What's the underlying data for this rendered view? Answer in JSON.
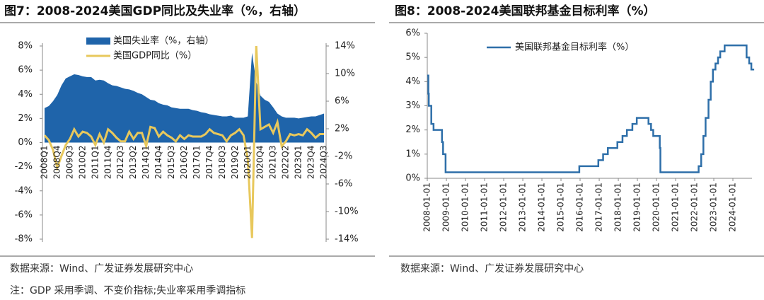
{
  "chart_data": [
    {
      "type": "combo",
      "title": "图7：2008-2024美国GDP同比及失业率（%，右轴）",
      "categories": [
        "2008Q1",
        null,
        null,
        "2008Q4",
        null,
        null,
        "2009Q3",
        null,
        null,
        "2010Q2",
        null,
        null,
        "2011Q1",
        null,
        null,
        "2011Q4",
        null,
        null,
        "2012Q3",
        null,
        null,
        "2013Q2",
        null,
        null,
        "2014Q1",
        null,
        null,
        "2014Q4",
        null,
        null,
        "2015Q3",
        null,
        null,
        "2016Q2",
        null,
        null,
        "2017Q1",
        null,
        null,
        "2017Q4",
        null,
        null,
        "2018Q3",
        null,
        null,
        "2019Q2",
        null,
        null,
        "2020Q1",
        null,
        null,
        "2020Q4",
        null,
        null,
        "2021Q3",
        null,
        null,
        "2022Q2",
        null,
        null,
        "2023Q1",
        null,
        null,
        "2023Q4",
        null,
        null,
        "2024Q3"
      ],
      "series": [
        {
          "name": "美国失业率（%，右轴）",
          "type": "area",
          "axis": "y2",
          "color": "#1f64aa",
          "values": [
            5.0,
            5.3,
            6.0,
            6.9,
            8.3,
            9.3,
            9.6,
            9.9,
            9.8,
            9.6,
            9.5,
            9.5,
            9.0,
            9.1,
            9.0,
            8.6,
            8.3,
            8.2,
            8.0,
            7.8,
            7.7,
            7.5,
            7.2,
            7.0,
            6.6,
            6.2,
            6.1,
            5.7,
            5.5,
            5.4,
            5.1,
            5.0,
            4.9,
            4.9,
            4.9,
            4.7,
            4.6,
            4.4,
            4.3,
            4.1,
            4.0,
            3.9,
            3.8,
            3.8,
            3.9,
            3.6,
            3.6,
            3.6,
            3.8,
            13.0,
            8.8,
            6.8,
            6.2,
            5.9,
            5.1,
            4.2,
            3.8,
            3.6,
            3.6,
            3.6,
            3.5,
            3.6,
            3.7,
            3.8,
            3.8,
            4.0,
            4.2
          ]
        },
        {
          "name": "美国GDP同比（%）",
          "type": "line",
          "color": "#e8c85c",
          "values": [
            0.6,
            0.2,
            -0.6,
            -2.1,
            -1.1,
            -0.2,
            0.3,
            1.1,
            0.5,
            0.9,
            0.8,
            0.5,
            -0.2,
            0.7,
            0.0,
            1.1,
            0.8,
            0.4,
            0.1,
            0.1,
            0.9,
            0.3,
            0.8,
            0.8,
            -0.3,
            1.3,
            1.2,
            0.5,
            0.9,
            0.6,
            0.4,
            0.1,
            0.6,
            0.3,
            0.6,
            0.5,
            0.5,
            0.5,
            0.7,
            1.1,
            0.8,
            0.7,
            0.6,
            0.1,
            0.6,
            0.8,
            1.1,
            0.6,
            -1.4,
            -7.9,
            8.0,
            1.1,
            1.3,
            1.5,
            0.8,
            1.7,
            -0.3,
            0.1,
            0.7,
            0.6,
            0.7,
            0.6,
            1.1,
            0.8,
            0.4,
            0.7,
            0.7
          ]
        }
      ],
      "ylim": [
        -8,
        8
      ],
      "yticks": [
        {
          "value": -8,
          "label": "-8%"
        },
        {
          "value": -6,
          "label": "-6%"
        },
        {
          "value": -4,
          "label": "-4%"
        },
        {
          "value": -2,
          "label": "-2%"
        },
        {
          "value": 0,
          "label": "0%"
        },
        {
          "value": 2,
          "label": "2%"
        },
        {
          "value": 4,
          "label": "4%"
        },
        {
          "value": 6,
          "label": "6%"
        },
        {
          "value": 8,
          "label": "8%"
        }
      ],
      "y2lim": [
        -14,
        14
      ],
      "y2ticks": [
        {
          "value": -14,
          "label": "-14%"
        },
        {
          "value": -10,
          "label": "-10%"
        },
        {
          "value": -6,
          "label": "-6%"
        },
        {
          "value": -2,
          "label": "-2%"
        },
        {
          "value": 2,
          "label": "2%"
        },
        {
          "value": 6,
          "label": "6%"
        },
        {
          "value": 10,
          "label": "10%"
        },
        {
          "value": 14,
          "label": "14%"
        }
      ],
      "source": "数据来源：Wind、广发证券发展研究中心",
      "note": "注：GDP 采用季调、不变价指标;失业率采用季调指标"
    },
    {
      "type": "line",
      "step": true,
      "title": "图8：2008-2024美国联邦基金目标利率（%）",
      "x": [
        "2008-01-01",
        "2008-01-22",
        "2008-01-30",
        "2008-03-18",
        "2008-04-30",
        "2008-10-08",
        "2008-10-29",
        "2008-12-16",
        "2015-12-17",
        "2016-12-15",
        "2017-03-16",
        "2017-06-15",
        "2017-12-14",
        "2018-03-22",
        "2018-06-14",
        "2018-09-27",
        "2018-12-20",
        "2019-08-01",
        "2019-09-19",
        "2019-10-31",
        "2020-03-04",
        "2020-03-16",
        "2022-03-17",
        "2022-05-05",
        "2022-06-16",
        "2022-07-28",
        "2022-09-22",
        "2022-11-03",
        "2022-12-15",
        "2023-02-02",
        "2023-03-23",
        "2023-05-04",
        "2023-07-27",
        "2024-09-19",
        "2024-11-08",
        "2024-12-19"
      ],
      "series": [
        {
          "name": "美国联邦基金目标利率（%）",
          "color": "#2e6fa9",
          "values": [
            4.25,
            3.5,
            3.0,
            2.25,
            2.0,
            1.5,
            1.0,
            0.25,
            0.5,
            0.75,
            1.0,
            1.25,
            1.5,
            1.75,
            2.0,
            2.25,
            2.5,
            2.25,
            2.0,
            1.75,
            1.25,
            0.25,
            0.5,
            1.0,
            1.75,
            2.5,
            3.25,
            4.0,
            4.5,
            4.75,
            5.0,
            5.25,
            5.5,
            5.0,
            4.75,
            4.5
          ]
        }
      ],
      "xlim": [
        "2008-01-01",
        "2024-12-31"
      ],
      "xticks": [
        "2008-01-01",
        "2009-01-01",
        "2010-01-01",
        "2011-01-01",
        "2012-01-01",
        "2013-01-01",
        "2014-01-01",
        "2015-01-01",
        "2016-01-01",
        "2017-01-01",
        "2018-01-01",
        "2019-01-01",
        "2020-01-01",
        "2021-01-01",
        "2022-01-01",
        "2023-01-01",
        "2024-01-01"
      ],
      "ylim": [
        0,
        6
      ],
      "yticks": [
        {
          "value": 0,
          "label": "0%"
        },
        {
          "value": 1,
          "label": "1%"
        },
        {
          "value": 2,
          "label": "2%"
        },
        {
          "value": 3,
          "label": "3%"
        },
        {
          "value": 4,
          "label": "4%"
        },
        {
          "value": 5,
          "label": "5%"
        },
        {
          "value": 6,
          "label": "6%"
        }
      ],
      "source": "数据来源：Wind、广发证券发展研究中心"
    }
  ]
}
